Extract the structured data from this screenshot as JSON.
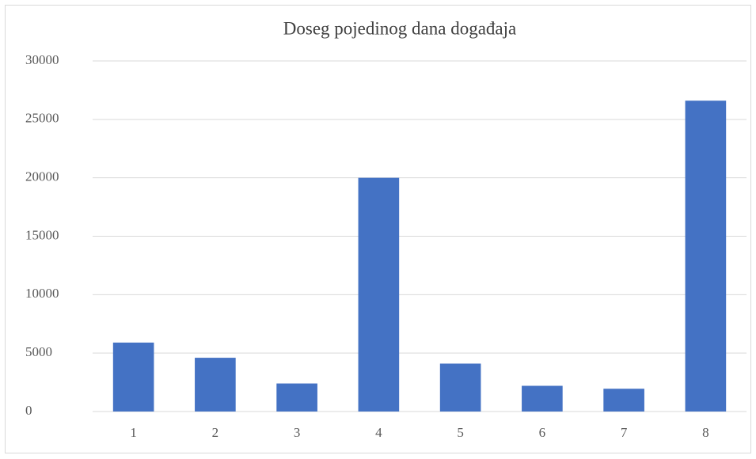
{
  "chart_data": {
    "type": "bar",
    "title": "Doseg pojedinog dana događaja",
    "categories": [
      "1",
      "2",
      "3",
      "4",
      "5",
      "6",
      "7",
      "8"
    ],
    "values": [
      5900,
      4600,
      2400,
      20000,
      4100,
      2200,
      1950,
      26600
    ],
    "color": "#4472c4",
    "ylim": [
      0,
      30000
    ],
    "yticks": [
      0,
      5000,
      10000,
      15000,
      20000,
      25000,
      30000
    ],
    "grid": true
  }
}
